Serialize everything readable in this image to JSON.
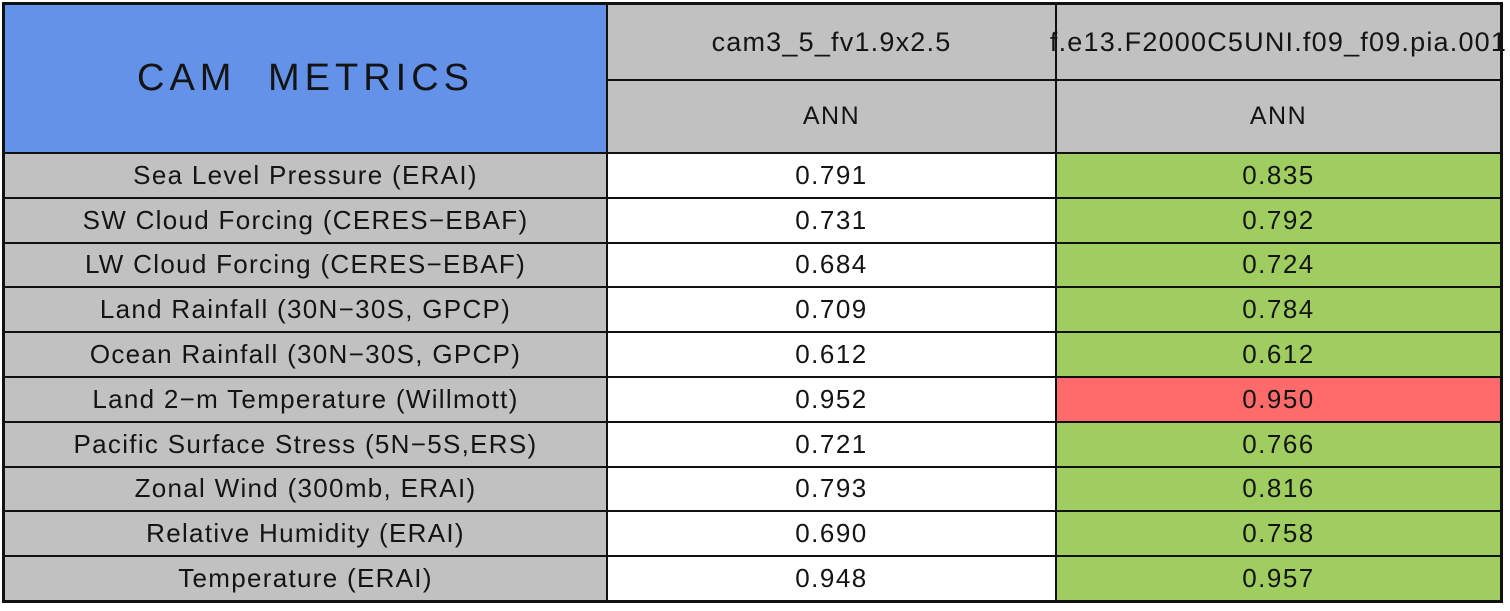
{
  "chart_data": {
    "type": "table",
    "title": "CAM METRICS",
    "columns": [
      {
        "name": "cam3_5_fv1.9x2.5",
        "subheader": "ANN"
      },
      {
        "name": "f.e13.F2000C5UNI.f09_f09.pia.001",
        "subheader": "ANN"
      }
    ],
    "rows": [
      {
        "metric": "Sea Level Pressure (ERAI)",
        "control": "0.791",
        "test": "0.835",
        "test_status": "better"
      },
      {
        "metric": "SW Cloud Forcing (CERES−EBAF)",
        "control": "0.731",
        "test": "0.792",
        "test_status": "better"
      },
      {
        "metric": "LW Cloud Forcing (CERES−EBAF)",
        "control": "0.684",
        "test": "0.724",
        "test_status": "better"
      },
      {
        "metric": "Land Rainfall (30N−30S, GPCP)",
        "control": "0.709",
        "test": "0.784",
        "test_status": "better"
      },
      {
        "metric": "Ocean Rainfall (30N−30S, GPCP)",
        "control": "0.612",
        "test": "0.612",
        "test_status": "better"
      },
      {
        "metric": "Land 2−m Temperature (Willmott)",
        "control": "0.952",
        "test": "0.950",
        "test_status": "worse"
      },
      {
        "metric": "Pacific Surface Stress (5N−5S,ERS)",
        "control": "0.721",
        "test": "0.766",
        "test_status": "better"
      },
      {
        "metric": "Zonal Wind (300mb, ERAI)",
        "control": "0.793",
        "test": "0.816",
        "test_status": "better"
      },
      {
        "metric": "Relative Humidity (ERAI)",
        "control": "0.690",
        "test": "0.758",
        "test_status": "better"
      },
      {
        "metric": "Temperature (ERAI)",
        "control": "0.948",
        "test": "0.957",
        "test_status": "better"
      }
    ],
    "colors": {
      "title_blue": "#6392e8",
      "header_gray": "#c1c1c1",
      "better_green": "#a0cd5f",
      "worse_red": "#ff6b6b"
    },
    "layout": {
      "legend": "none",
      "grid": "black cell borders"
    }
  }
}
